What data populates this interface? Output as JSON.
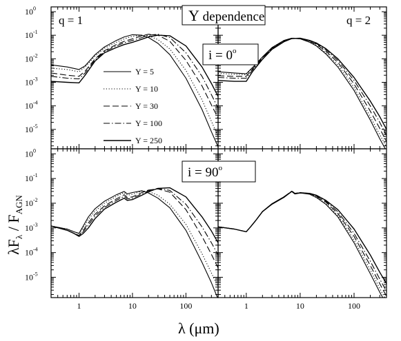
{
  "figure": {
    "title_main": "Y",
    "title_rest": " dependence",
    "ylabel": {
      "lead": "λF",
      "sub1": "λ",
      "slash": " / F",
      "sub2": "AGN"
    },
    "xlabel": "λ (μm)",
    "incl_top": {
      "prefix": "i = 0",
      "sup": "o"
    },
    "incl_bottom": {
      "prefix": "i = 90",
      "sup": "o"
    },
    "q_left": "q = 1",
    "q_right": "q = 2",
    "ytick_base": "10",
    "colors": {
      "line": "#000000",
      "background": "#ffffff"
    },
    "legend_placement": "upper-left panel, left"
  },
  "chart_data": {
    "type": "line",
    "x_scale": "log",
    "y_scale": "log",
    "xlim": [
      0.3,
      400
    ],
    "ylim": [
      1.5e-06,
      1.6
    ],
    "xticks": [
      1,
      10,
      100
    ],
    "xtick_labels": [
      "1",
      "10",
      "100"
    ],
    "yticks": [
      {
        "base": "10",
        "exp": "0"
      },
      {
        "base": "10",
        "exp": "-1"
      },
      {
        "base": "10",
        "exp": "-2"
      },
      {
        "base": "10",
        "exp": "-3"
      },
      {
        "base": "10",
        "exp": "-4"
      },
      {
        "base": "10",
        "exp": "-5"
      }
    ],
    "series": [
      {
        "name": "Y = 5",
        "dash": "solid"
      },
      {
        "name": "Y = 10",
        "dash": "dotted"
      },
      {
        "name": "Y = 30",
        "dash": "dashed"
      },
      {
        "name": "Y = 100",
        "dash": "dashdot"
      },
      {
        "name": "Y = 250",
        "dash": "solid"
      }
    ],
    "panels": [
      {
        "id": "q1-face-on",
        "q": 1,
        "inclination": 0,
        "series": [
          {
            "x": [
              0.3,
              0.6,
              1,
              1.3,
              2,
              3,
              5,
              7,
              10,
              15,
              20,
              30,
              50,
              100,
              200,
              300,
              400
            ],
            "y": [
              0.0055,
              0.0045,
              0.0035,
              0.005,
              0.015,
              0.032,
              0.06,
              0.085,
              0.105,
              0.1,
              0.08,
              0.045,
              0.015,
              0.0015,
              7e-05,
              8e-06,
              1.8e-06
            ]
          },
          {
            "x": [
              0.3,
              0.6,
              1,
              1.3,
              2,
              3,
              5,
              7,
              10,
              15,
              20,
              30,
              50,
              100,
              200,
              300,
              400
            ],
            "y": [
              0.004,
              0.0035,
              0.0028,
              0.0045,
              0.013,
              0.028,
              0.05,
              0.07,
              0.09,
              0.1,
              0.095,
              0.065,
              0.026,
              0.0032,
              0.00018,
              2.2e-05,
              5e-06
            ]
          },
          {
            "x": [
              0.3,
              0.6,
              1,
              1.3,
              2,
              3,
              5,
              7,
              10,
              15,
              20,
              30,
              50,
              100,
              200,
              300,
              400
            ],
            "y": [
              0.0025,
              0.002,
              0.0018,
              0.003,
              0.01,
              0.022,
              0.04,
              0.055,
              0.07,
              0.095,
              0.11,
              0.1,
              0.055,
              0.0085,
              0.0007,
              0.00011,
              3e-05
            ]
          },
          {
            "x": [
              0.3,
              0.6,
              1,
              1.3,
              2,
              3,
              5,
              7,
              10,
              15,
              20,
              30,
              50,
              100,
              200,
              300,
              400
            ],
            "y": [
              0.0018,
              0.0015,
              0.0014,
              0.0025,
              0.009,
              0.02,
              0.035,
              0.048,
              0.06,
              0.08,
              0.1,
              0.11,
              0.08,
              0.018,
              0.0018,
              0.0003,
              8e-05
            ]
          },
          {
            "x": [
              0.3,
              0.6,
              1,
              1.3,
              2,
              3,
              5,
              7,
              10,
              15,
              20,
              30,
              50,
              100,
              200,
              300,
              400
            ],
            "y": [
              0.0011,
              0.001,
              0.00095,
              0.002,
              0.008,
              0.018,
              0.03,
              0.04,
              0.05,
              0.068,
              0.085,
              0.1,
              0.095,
              0.035,
              0.0045,
              0.0009,
              0.00025
            ]
          }
        ]
      },
      {
        "id": "q2-face-on",
        "q": 2,
        "inclination": 0,
        "series": [
          {
            "x": [
              0.3,
              0.6,
              1,
              1.3,
              2,
              3,
              5,
              7,
              10,
              15,
              20,
              30,
              50,
              100,
              200,
              300,
              400
            ],
            "y": [
              0.0028,
              0.0025,
              0.0023,
              0.0042,
              0.012,
              0.03,
              0.06,
              0.075,
              0.07,
              0.05,
              0.035,
              0.016,
              0.0045,
              0.00045,
              2.5e-05,
              4e-06,
              1.2e-06
            ]
          },
          {
            "x": [
              0.3,
              0.6,
              1,
              1.3,
              2,
              3,
              5,
              7,
              10,
              15,
              20,
              30,
              50,
              100,
              200,
              300,
              400
            ],
            "y": [
              0.0024,
              0.0022,
              0.0021,
              0.004,
              0.012,
              0.03,
              0.06,
              0.075,
              0.071,
              0.052,
              0.037,
              0.018,
              0.0055,
              0.0006,
              3.5e-05,
              6e-06,
              1.8e-06
            ]
          },
          {
            "x": [
              0.3,
              0.6,
              1,
              1.3,
              2,
              3,
              5,
              7,
              10,
              15,
              20,
              30,
              50,
              100,
              200,
              300,
              400
            ],
            "y": [
              0.0019,
              0.0018,
              0.0018,
              0.0036,
              0.011,
              0.028,
              0.058,
              0.075,
              0.073,
              0.055,
              0.041,
              0.021,
              0.007,
              0.00085,
              6e-05,
              1.1e-05,
              3e-06
            ]
          },
          {
            "x": [
              0.3,
              0.6,
              1,
              1.3,
              2,
              3,
              5,
              7,
              10,
              15,
              20,
              30,
              50,
              100,
              200,
              300,
              400
            ],
            "y": [
              0.0016,
              0.0015,
              0.0015,
              0.0033,
              0.0105,
              0.027,
              0.056,
              0.074,
              0.074,
              0.057,
              0.044,
              0.024,
              0.0085,
              0.0012,
              0.0001,
              2e-05,
              5.5e-06
            ]
          },
          {
            "x": [
              0.3,
              0.6,
              1,
              1.3,
              2,
              3,
              5,
              7,
              10,
              15,
              20,
              30,
              50,
              100,
              200,
              300,
              400
            ],
            "y": [
              0.0012,
              0.0011,
              0.0011,
              0.0028,
              0.0095,
              0.025,
              0.053,
              0.072,
              0.075,
              0.06,
              0.047,
              0.027,
              0.01,
              0.0016,
              0.00016,
              3.5e-05,
              1e-05
            ]
          }
        ]
      },
      {
        "id": "q1-edge-on",
        "q": 1,
        "inclination": 90,
        "series": [
          {
            "x": [
              0.3,
              0.6,
              0.8,
              1,
              1.2,
              1.5,
              2,
              3,
              5,
              7,
              8,
              10,
              15,
              20,
              30,
              50,
              100,
              200,
              300,
              400
            ],
            "y": [
              0.0012,
              0.0009,
              0.0007,
              0.0006,
              0.0012,
              0.0028,
              0.006,
              0.012,
              0.022,
              0.03,
              0.024,
              0.027,
              0.032,
              0.026,
              0.016,
              0.0065,
              0.0008,
              4e-05,
              6e-06,
              1.3e-06
            ]
          },
          {
            "x": [
              0.3,
              0.6,
              0.8,
              1,
              1.2,
              1.5,
              2,
              3,
              5,
              7,
              8,
              10,
              15,
              20,
              30,
              50,
              100,
              200,
              300,
              400
            ],
            "y": [
              0.0012,
              0.0009,
              0.0007,
              0.0006,
              0.001,
              0.0022,
              0.0048,
              0.01,
              0.019,
              0.027,
              0.021,
              0.023,
              0.031,
              0.03,
              0.021,
              0.009,
              0.0014,
              9e-05,
              1.5e-05,
              4e-06
            ]
          },
          {
            "x": [
              0.3,
              0.6,
              0.8,
              1,
              1.2,
              1.5,
              2,
              3,
              5,
              7,
              8,
              10,
              15,
              20,
              30,
              50,
              100,
              200,
              300,
              400
            ],
            "y": [
              0.0012,
              0.0008,
              0.0006,
              0.0005,
              0.0008,
              0.0016,
              0.0036,
              0.0078,
              0.015,
              0.022,
              0.017,
              0.018,
              0.027,
              0.034,
              0.038,
              0.028,
              0.0055,
              0.00045,
              8.5e-05,
              2.4e-05
            ]
          },
          {
            "x": [
              0.3,
              0.6,
              0.8,
              1,
              1.2,
              1.5,
              2,
              3,
              5,
              7,
              8,
              10,
              15,
              20,
              30,
              50,
              100,
              200,
              300,
              400
            ],
            "y": [
              0.0012,
              0.0008,
              0.0006,
              0.00048,
              0.0007,
              0.0013,
              0.003,
              0.0068,
              0.013,
              0.019,
              0.015,
              0.016,
              0.024,
              0.032,
              0.04,
              0.033,
              0.009,
              0.0011,
              0.00025,
              8e-05
            ]
          },
          {
            "x": [
              0.3,
              0.6,
              0.8,
              1,
              1.2,
              1.5,
              2,
              3,
              5,
              7,
              8,
              10,
              15,
              20,
              30,
              50,
              100,
              200,
              300,
              400
            ],
            "y": [
              0.0012,
              0.0008,
              0.0006,
              0.00045,
              0.0006,
              0.001,
              0.0024,
              0.0058,
              0.011,
              0.016,
              0.013,
              0.014,
              0.021,
              0.029,
              0.04,
              0.042,
              0.018,
              0.0028,
              0.00075,
              0.00025
            ]
          }
        ]
      },
      {
        "id": "q2-edge-on",
        "q": 2,
        "inclination": 90,
        "series": [
          {
            "x": [
              0.3,
              0.6,
              1,
              1.2,
              1.5,
              2,
              3,
              5,
              7,
              8,
              10,
              15,
              20,
              30,
              50,
              100,
              200,
              300,
              400
            ],
            "y": [
              0.0011,
              0.0009,
              0.0007,
              0.0011,
              0.002,
              0.0045,
              0.009,
              0.017,
              0.03,
              0.024,
              0.026,
              0.023,
              0.017,
              0.009,
              0.0028,
              0.00025,
              1.4e-05,
              2.5e-06,
              8e-07
            ]
          },
          {
            "x": [
              0.3,
              0.6,
              1,
              1.2,
              1.5,
              2,
              3,
              5,
              7,
              8,
              10,
              15,
              20,
              30,
              50,
              100,
              200,
              300,
              400
            ],
            "y": [
              0.0011,
              0.0009,
              0.0007,
              0.0011,
              0.002,
              0.0045,
              0.0092,
              0.0175,
              0.031,
              0.025,
              0.027,
              0.024,
              0.018,
              0.0095,
              0.0032,
              0.00032,
              2e-05,
              3.5e-06,
              1.1e-06
            ]
          },
          {
            "x": [
              0.3,
              0.6,
              1,
              1.2,
              1.5,
              2,
              3,
              5,
              7,
              8,
              10,
              15,
              20,
              30,
              50,
              100,
              200,
              300,
              400
            ],
            "y": [
              0.0011,
              0.0009,
              0.0007,
              0.0011,
              0.002,
              0.0046,
              0.0094,
              0.018,
              0.031,
              0.025,
              0.027,
              0.025,
              0.019,
              0.011,
              0.0038,
              0.00045,
              3e-05,
              5.5e-06,
              1.7e-06
            ]
          },
          {
            "x": [
              0.3,
              0.6,
              1,
              1.2,
              1.5,
              2,
              3,
              5,
              7,
              8,
              10,
              15,
              20,
              30,
              50,
              100,
              200,
              300,
              400
            ],
            "y": [
              0.0011,
              0.0009,
              0.0007,
              0.0011,
              0.002,
              0.0046,
              0.0095,
              0.018,
              0.031,
              0.025,
              0.027,
              0.025,
              0.02,
              0.012,
              0.0045,
              0.0006,
              4.5e-05,
              8.5e-06,
              2.7e-06
            ]
          },
          {
            "x": [
              0.3,
              0.6,
              1,
              1.2,
              1.5,
              2,
              3,
              5,
              7,
              8,
              10,
              15,
              20,
              30,
              50,
              100,
              200,
              300,
              400
            ],
            "y": [
              0.0011,
              0.0009,
              0.0007,
              0.0011,
              0.002,
              0.0046,
              0.0095,
              0.018,
              0.03,
              0.024,
              0.026,
              0.025,
              0.021,
              0.013,
              0.0055,
              0.0009,
              8e-05,
              1.6e-05,
              5.5e-06
            ]
          }
        ]
      }
    ]
  }
}
